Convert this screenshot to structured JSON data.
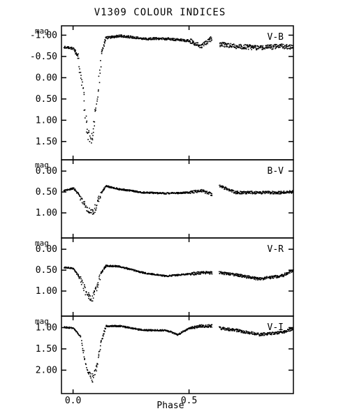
{
  "figure_title": "V1309 COLOUR INDICES",
  "x_axis_label": "Phase",
  "x_ticks": [
    {
      "value": 0.0,
      "label": "0.0"
    },
    {
      "value": 0.5,
      "label": "0.5"
    }
  ],
  "chart_data": [
    {
      "type": "scatter",
      "panel": "V-B",
      "ylabel": "mag",
      "xlim": [
        -0.05,
        0.95
      ],
      "ylim": [
        -1.22,
        1.93
      ],
      "y_inverted": true,
      "y_ticks": [
        "-1.00",
        "-0.50",
        "0.00",
        "0.50",
        "1.00",
        "1.50"
      ],
      "y_tick_values": [
        -1.0,
        -0.5,
        0.0,
        0.5,
        1.0,
        1.5
      ],
      "gap": [
        0.6,
        0.63
      ],
      "series": [
        {
          "points": [
            [
              -0.04,
              -0.73
            ],
            [
              0.0,
              -0.7
            ],
            [
              0.02,
              -0.5
            ],
            [
              0.04,
              0.3
            ],
            [
              0.06,
              1.3
            ],
            [
              0.08,
              1.4
            ],
            [
              0.1,
              0.6
            ],
            [
              0.12,
              -0.6
            ],
            [
              0.14,
              -0.95
            ],
            [
              0.2,
              -1.0
            ],
            [
              0.3,
              -0.93
            ],
            [
              0.4,
              -0.93
            ],
            [
              0.5,
              -0.88
            ],
            [
              0.55,
              -0.75
            ],
            [
              0.6,
              -0.95
            ],
            [
              0.63,
              -0.8
            ],
            [
              0.7,
              -0.75
            ],
            [
              0.8,
              -0.72
            ],
            [
              0.9,
              -0.75
            ],
            [
              0.95,
              -0.72
            ]
          ]
        }
      ]
    },
    {
      "type": "scatter",
      "panel": "B-V",
      "ylabel": "mag",
      "xlim": [
        -0.05,
        0.95
      ],
      "ylim": [
        -0.27,
        1.6
      ],
      "y_inverted": true,
      "y_ticks": [
        "0.00",
        "0.50",
        "1.00"
      ],
      "y_tick_values": [
        0.0,
        0.5,
        1.0
      ],
      "gap": [
        0.6,
        0.63
      ],
      "series": [
        {
          "points": [
            [
              -0.04,
              0.45
            ],
            [
              0.0,
              0.4
            ],
            [
              0.03,
              0.6
            ],
            [
              0.06,
              0.9
            ],
            [
              0.08,
              1.0
            ],
            [
              0.1,
              0.8
            ],
            [
              0.12,
              0.5
            ],
            [
              0.14,
              0.35
            ],
            [
              0.2,
              0.42
            ],
            [
              0.3,
              0.5
            ],
            [
              0.4,
              0.52
            ],
            [
              0.5,
              0.5
            ],
            [
              0.55,
              0.45
            ],
            [
              0.6,
              0.55
            ],
            [
              0.63,
              0.35
            ],
            [
              0.7,
              0.5
            ],
            [
              0.8,
              0.5
            ],
            [
              0.9,
              0.5
            ],
            [
              0.95,
              0.48
            ]
          ]
        }
      ]
    },
    {
      "type": "scatter",
      "panel": "V-R",
      "ylabel": "mag",
      "xlim": [
        -0.05,
        0.95
      ],
      "ylim": [
        -0.27,
        1.6
      ],
      "y_inverted": true,
      "y_ticks": [
        "0.00",
        "0.50",
        "1.00"
      ],
      "y_tick_values": [
        0.0,
        0.5,
        1.0
      ],
      "gap": [
        0.6,
        0.63
      ],
      "series": [
        {
          "points": [
            [
              -0.04,
              0.42
            ],
            [
              0.0,
              0.45
            ],
            [
              0.03,
              0.7
            ],
            [
              0.06,
              1.1
            ],
            [
              0.08,
              1.15
            ],
            [
              0.1,
              0.9
            ],
            [
              0.12,
              0.55
            ],
            [
              0.14,
              0.38
            ],
            [
              0.2,
              0.4
            ],
            [
              0.3,
              0.55
            ],
            [
              0.4,
              0.63
            ],
            [
              0.5,
              0.58
            ],
            [
              0.55,
              0.55
            ],
            [
              0.6,
              0.55
            ],
            [
              0.63,
              0.55
            ],
            [
              0.7,
              0.6
            ],
            [
              0.8,
              0.7
            ],
            [
              0.9,
              0.62
            ],
            [
              0.95,
              0.48
            ]
          ]
        }
      ]
    },
    {
      "type": "scatter",
      "panel": "V-I",
      "ylabel": "mag",
      "xlim": [
        -0.05,
        0.95
      ],
      "ylim": [
        0.73,
        2.55
      ],
      "y_inverted": true,
      "y_ticks": [
        "1.00",
        "1.50",
        "2.00"
      ],
      "y_tick_values": [
        1.0,
        1.5,
        2.0
      ],
      "gap": [
        0.6,
        0.63
      ],
      "series": [
        {
          "points": [
            [
              -0.04,
              0.98
            ],
            [
              0.0,
              1.0
            ],
            [
              0.03,
              1.2
            ],
            [
              0.06,
              2.0
            ],
            [
              0.08,
              2.2
            ],
            [
              0.1,
              1.9
            ],
            [
              0.12,
              1.3
            ],
            [
              0.14,
              0.95
            ],
            [
              0.2,
              0.95
            ],
            [
              0.3,
              1.05
            ],
            [
              0.4,
              1.05
            ],
            [
              0.45,
              1.15
            ],
            [
              0.5,
              1.0
            ],
            [
              0.55,
              0.95
            ],
            [
              0.6,
              0.95
            ],
            [
              0.63,
              1.0
            ],
            [
              0.7,
              1.05
            ],
            [
              0.8,
              1.15
            ],
            [
              0.9,
              1.1
            ],
            [
              0.95,
              1.0
            ]
          ]
        }
      ]
    }
  ]
}
